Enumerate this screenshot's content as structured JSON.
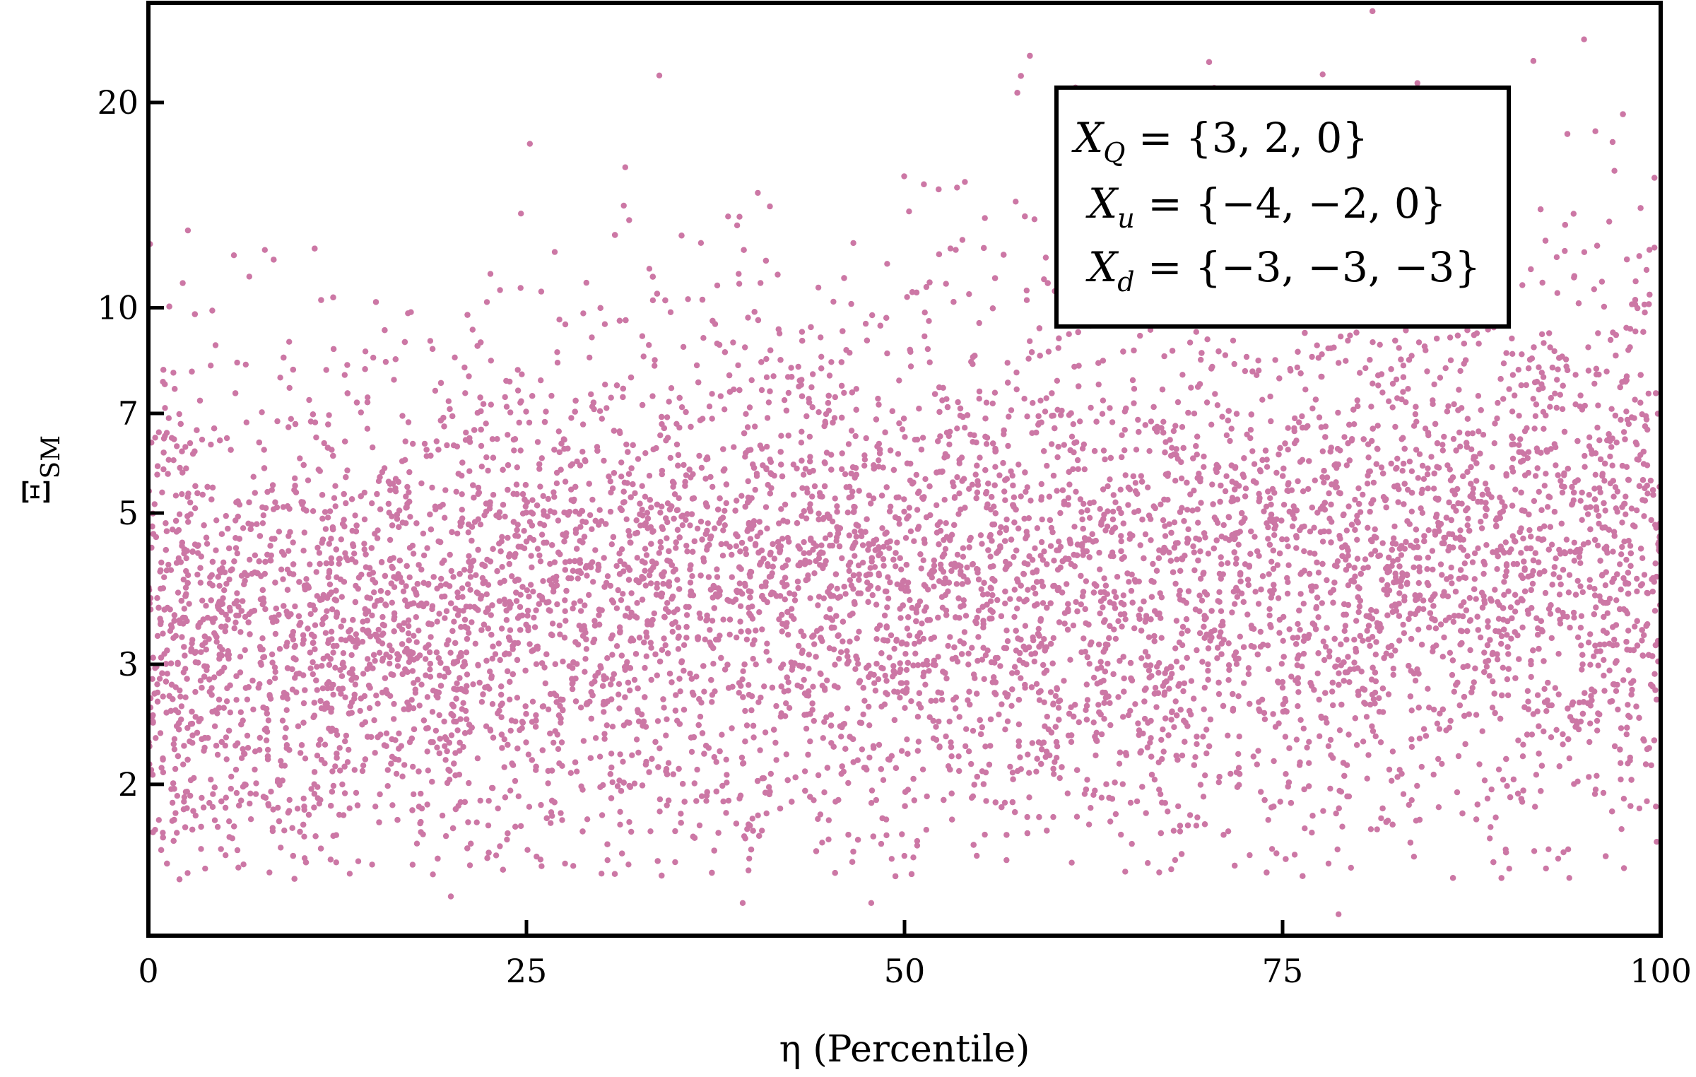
{
  "chart_data": {
    "type": "scatter",
    "xlabel": "η (Percentile)",
    "ylabel": "Ξ_SM",
    "ylabel_main": "Ξ",
    "ylabel_sub": "SM",
    "xlim": [
      0,
      100
    ],
    "ylim": [
      1.2,
      28
    ],
    "y_scale": "log",
    "x_ticks": [
      "0",
      "25",
      "50",
      "75",
      "100"
    ],
    "y_ticks": [
      "2",
      "3",
      "5",
      "7",
      "10",
      "20"
    ],
    "grid": false,
    "point_color": "#cc77a5",
    "legend": {
      "placement": "top-right",
      "lines": [
        {
          "var": "X",
          "sub": "Q",
          "rest": " = {3, 2, 0}"
        },
        {
          "var": "X",
          "sub": "u",
          "rest": " = {−4, −2, 0}"
        },
        {
          "var": "X",
          "sub": "d",
          "rest": " = {−3, −3, −3}"
        }
      ]
    },
    "distribution": {
      "description_of_density": "dense band",
      "median_y_by_x": [
        {
          "x": 0,
          "y": 2.9
        },
        {
          "x": 25,
          "y": 3.5
        },
        {
          "x": 50,
          "y": 3.7
        },
        {
          "x": 75,
          "y": 3.8
        },
        {
          "x": 100,
          "y": 4.2
        }
      ],
      "lowest_points": [
        {
          "x": 20.0,
          "y": 1.37
        },
        {
          "x": 39.3,
          "y": 1.34
        },
        {
          "x": 47.8,
          "y": 1.34
        },
        {
          "x": 78.7,
          "y": 1.29
        }
      ]
    }
  }
}
